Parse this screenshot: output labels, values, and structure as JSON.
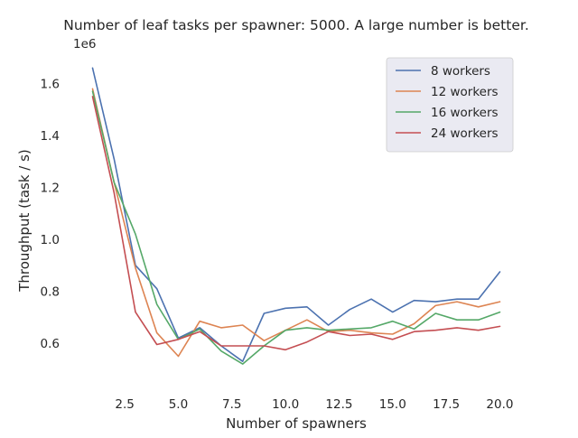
{
  "chart_data": {
    "type": "line",
    "title": "Number of leaf tasks per spawner: 5000. A large number is better.",
    "xlabel": "Number of spawners",
    "ylabel": "Throughput (task / s)",
    "y_offset_label": "1e6",
    "xlim": [
      0.05,
      20.95
    ],
    "ylim": [
      0.43,
      1.72
    ],
    "xticks": [
      2.5,
      5.0,
      7.5,
      10.0,
      12.5,
      15.0,
      17.5,
      20.0
    ],
    "xtick_labels": [
      "2.5",
      "5.0",
      "7.5",
      "10.0",
      "12.5",
      "15.0",
      "17.5",
      "20.0"
    ],
    "yticks": [
      0.6,
      0.8,
      1.0,
      1.2,
      1.4,
      1.6
    ],
    "ytick_labels": [
      "0.6",
      "0.8",
      "1.0",
      "1.2",
      "1.4",
      "1.6"
    ],
    "grid": false,
    "legend_position": "top-right",
    "x": [
      1,
      2,
      3,
      4,
      5,
      6,
      7,
      8,
      9,
      10,
      11,
      12,
      13,
      14,
      15,
      16,
      17,
      18,
      19,
      20
    ],
    "series": [
      {
        "name": "8 workers",
        "color": "#4c72b0",
        "values": [
          1.66,
          1.31,
          0.9,
          0.81,
          0.62,
          0.66,
          0.59,
          0.53,
          0.715,
          0.735,
          0.74,
          0.67,
          0.73,
          0.77,
          0.72,
          0.765,
          0.76,
          0.77,
          0.77,
          0.875
        ]
      },
      {
        "name": "12 workers",
        "color": "#dd8452",
        "values": [
          1.58,
          1.22,
          0.89,
          0.64,
          0.55,
          0.685,
          0.66,
          0.67,
          0.61,
          0.65,
          0.69,
          0.645,
          0.65,
          0.64,
          0.635,
          0.675,
          0.745,
          0.76,
          0.74,
          0.76
        ]
      },
      {
        "name": "16 workers",
        "color": "#55a868",
        "values": [
          1.57,
          1.22,
          1.02,
          0.75,
          0.615,
          0.655,
          0.57,
          0.52,
          0.59,
          0.65,
          0.66,
          0.65,
          0.655,
          0.66,
          0.685,
          0.655,
          0.715,
          0.69,
          0.69,
          0.72
        ]
      },
      {
        "name": "24 workers",
        "color": "#c44e52",
        "values": [
          1.55,
          1.18,
          0.72,
          0.595,
          0.615,
          0.645,
          0.59,
          0.59,
          0.59,
          0.575,
          0.605,
          0.645,
          0.63,
          0.635,
          0.615,
          0.645,
          0.65,
          0.66,
          0.65,
          0.665
        ]
      }
    ]
  }
}
